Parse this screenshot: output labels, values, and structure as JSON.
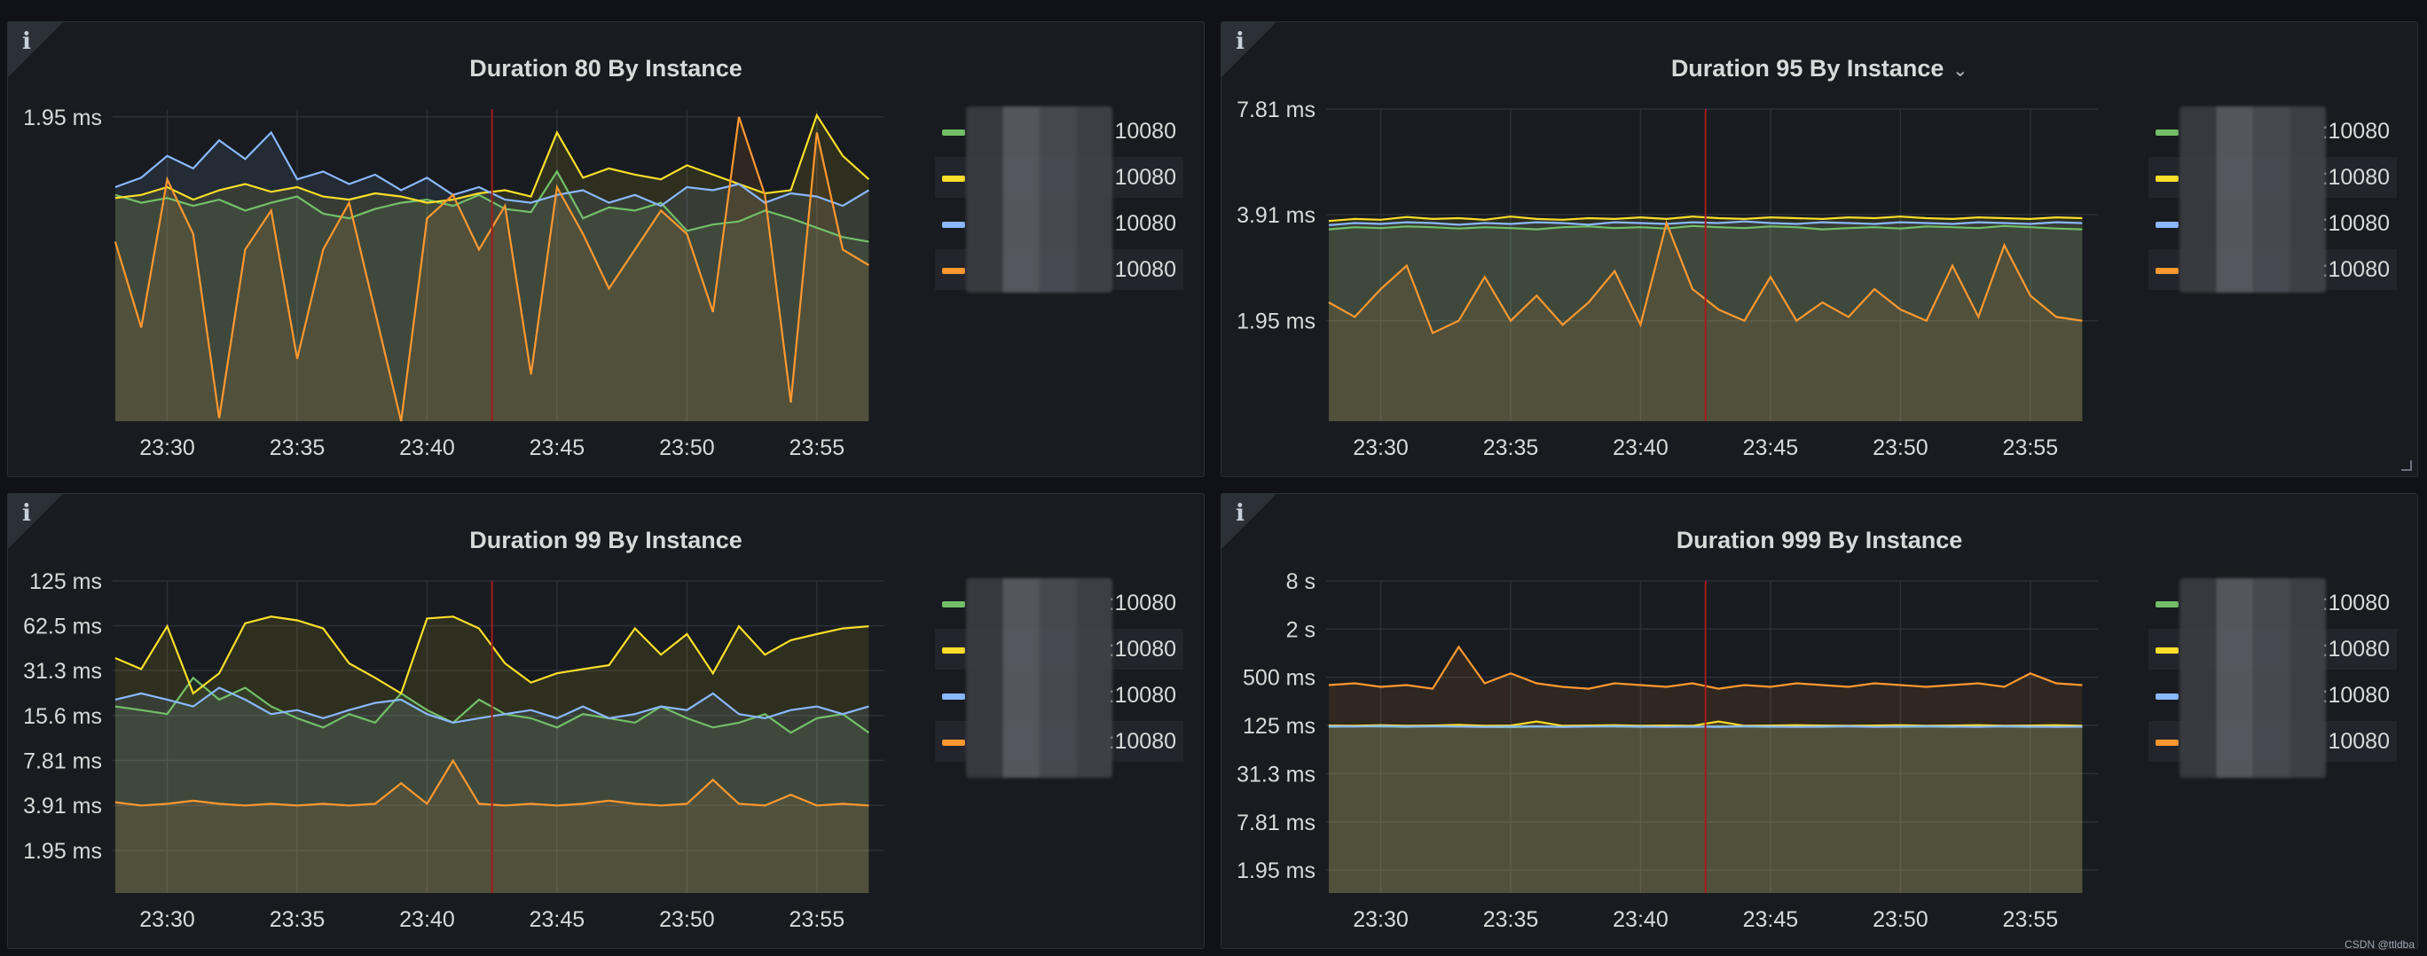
{
  "dashboard": {
    "watermark": "CSDN @ttldba",
    "time_axis": [
      "23:30",
      "23:35",
      "23:40",
      "23:45",
      "23:50",
      "23:55"
    ],
    "series_colors": [
      "#73bf69",
      "#fade2a",
      "#5794f2",
      "#ff9830"
    ],
    "annotation_color": "#a51b1b",
    "legend_suffix": "10080"
  },
  "panels": [
    {
      "title": "Duration 80 By Instance",
      "legend": [
        {
          "label": "10080",
          "color": "#73bf69"
        },
        {
          "label": "10080",
          "color": "#fade2a"
        },
        {
          "label": "10080",
          "color": "#8ab8ff"
        },
        {
          "label": "10080",
          "color": "#ff9830"
        }
      ]
    },
    {
      "title": "Duration 95 By Instance",
      "chevron": "⌄",
      "legend": [
        {
          "label": ":10080",
          "color": "#73bf69"
        },
        {
          "label": ":10080",
          "color": "#fade2a"
        },
        {
          "label": ":10080",
          "color": "#8ab8ff"
        },
        {
          "label": ":10080",
          "color": "#ff9830"
        }
      ]
    },
    {
      "title": "Duration 99 By Instance",
      "legend": [
        {
          "label": ":10080",
          "color": "#73bf69"
        },
        {
          "label": ":10080",
          "color": "#fade2a"
        },
        {
          "label": ":10080",
          "color": "#8ab8ff"
        },
        {
          "label": ":10080",
          "color": "#ff9830"
        }
      ]
    },
    {
      "title": "Duration 999 By Instance",
      "legend": [
        {
          "label": ":10080",
          "color": "#73bf69"
        },
        {
          "label": ":10080",
          "color": "#fade2a"
        },
        {
          "label": ":10080",
          "color": "#8ab8ff"
        },
        {
          "label": "10080",
          "color": "#ff9830"
        }
      ]
    }
  ],
  "chart_data": [
    {
      "type": "area",
      "title": "Duration 80 By Instance",
      "x": [
        "23:28",
        "23:29",
        "23:30",
        "23:31",
        "23:32",
        "23:33",
        "23:34",
        "23:35",
        "23:36",
        "23:37",
        "23:38",
        "23:39",
        "23:40",
        "23:41",
        "23:42",
        "23:43",
        "23:44",
        "23:45",
        "23:46",
        "23:47",
        "23:48",
        "23:49",
        "23:50",
        "23:51",
        "23:52",
        "23:53",
        "23:54",
        "23:55",
        "23:56",
        "23:57"
      ],
      "xticks": [
        "23:30",
        "23:35",
        "23:40",
        "23:45",
        "23:50",
        "23:55"
      ],
      "yticks": [
        "1.95 ms"
      ],
      "ylim": [
        0,
        2.0
      ],
      "annotation_x": "23:42.5",
      "series": [
        {
          "name": "10080",
          "color": "#73bf69",
          "values": [
            1.45,
            1.4,
            1.43,
            1.38,
            1.42,
            1.35,
            1.4,
            1.44,
            1.33,
            1.3,
            1.36,
            1.4,
            1.42,
            1.38,
            1.45,
            1.36,
            1.34,
            1.6,
            1.3,
            1.37,
            1.35,
            1.4,
            1.22,
            1.26,
            1.28,
            1.35,
            1.3,
            1.24,
            1.18,
            1.15
          ]
        },
        {
          "name": "10080",
          "color": "#fade2a",
          "values": [
            1.43,
            1.45,
            1.5,
            1.42,
            1.48,
            1.52,
            1.47,
            1.5,
            1.44,
            1.42,
            1.46,
            1.44,
            1.4,
            1.42,
            1.46,
            1.48,
            1.44,
            1.85,
            1.56,
            1.62,
            1.58,
            1.55,
            1.64,
            1.58,
            1.52,
            1.46,
            1.48,
            1.96,
            1.7,
            1.55
          ]
        },
        {
          "name": "10080",
          "color": "#8ab8ff",
          "values": [
            1.5,
            1.56,
            1.7,
            1.62,
            1.8,
            1.68,
            1.85,
            1.55,
            1.6,
            1.52,
            1.58,
            1.48,
            1.56,
            1.45,
            1.5,
            1.42,
            1.4,
            1.45,
            1.48,
            1.4,
            1.45,
            1.38,
            1.5,
            1.48,
            1.52,
            1.4,
            1.46,
            1.44,
            1.38,
            1.48
          ]
        },
        {
          "name": "10080",
          "color": "#ff9830",
          "values": [
            1.15,
            0.6,
            1.55,
            1.2,
            0.02,
            1.1,
            1.35,
            0.4,
            1.1,
            1.4,
            0.7,
            0.0,
            1.3,
            1.45,
            1.1,
            1.38,
            0.3,
            1.5,
            1.2,
            0.85,
            1.1,
            1.35,
            1.2,
            0.7,
            1.95,
            1.45,
            0.12,
            1.85,
            1.1,
            1.0
          ]
        }
      ]
    },
    {
      "type": "area",
      "title": "Duration 95 By Instance",
      "x": [
        "23:28",
        "23:29",
        "23:30",
        "23:31",
        "23:32",
        "23:33",
        "23:34",
        "23:35",
        "23:36",
        "23:37",
        "23:38",
        "23:39",
        "23:40",
        "23:41",
        "23:42",
        "23:43",
        "23:44",
        "23:45",
        "23:46",
        "23:47",
        "23:48",
        "23:49",
        "23:50",
        "23:51",
        "23:52",
        "23:53",
        "23:54",
        "23:55",
        "23:56",
        "23:57"
      ],
      "xticks": [
        "23:30",
        "23:35",
        "23:40",
        "23:45",
        "23:50",
        "23:55"
      ],
      "yticks": [
        "1.95 ms",
        "3.91 ms",
        "7.81 ms"
      ],
      "yscale": "log2",
      "annotation_x": "23:42.5",
      "series": [
        {
          "name": ":10080",
          "color": "#73bf69",
          "values": [
            3.55,
            3.6,
            3.58,
            3.62,
            3.6,
            3.57,
            3.6,
            3.58,
            3.55,
            3.6,
            3.62,
            3.58,
            3.6,
            3.57,
            3.63,
            3.6,
            3.58,
            3.62,
            3.6,
            3.55,
            3.58,
            3.6,
            3.57,
            3.62,
            3.6,
            3.58,
            3.63,
            3.6,
            3.57,
            3.55
          ]
        },
        {
          "name": ":10080",
          "color": "#fade2a",
          "values": [
            3.75,
            3.8,
            3.78,
            3.85,
            3.8,
            3.82,
            3.78,
            3.86,
            3.8,
            3.78,
            3.82,
            3.8,
            3.84,
            3.8,
            3.86,
            3.82,
            3.8,
            3.84,
            3.82,
            3.8,
            3.84,
            3.82,
            3.86,
            3.82,
            3.8,
            3.84,
            3.82,
            3.8,
            3.84,
            3.82
          ]
        },
        {
          "name": ":10080",
          "color": "#8ab8ff",
          "values": [
            3.65,
            3.7,
            3.68,
            3.72,
            3.7,
            3.66,
            3.7,
            3.68,
            3.72,
            3.7,
            3.66,
            3.72,
            3.7,
            3.68,
            3.72,
            3.7,
            3.74,
            3.7,
            3.68,
            3.72,
            3.7,
            3.68,
            3.72,
            3.7,
            3.68,
            3.72,
            3.7,
            3.68,
            3.72,
            3.7
          ]
        },
        {
          "name": ":10080",
          "color": "#ff9830",
          "values": [
            2.2,
            2.0,
            2.4,
            2.8,
            1.8,
            1.95,
            2.6,
            1.95,
            2.3,
            1.9,
            2.2,
            2.7,
            1.9,
            3.7,
            2.4,
            2.1,
            1.95,
            2.6,
            1.95,
            2.2,
            2.0,
            2.4,
            2.1,
            1.95,
            2.8,
            2.0,
            3.2,
            2.3,
            2.0,
            1.95
          ]
        }
      ]
    },
    {
      "type": "area",
      "title": "Duration 99 By Instance",
      "x": [
        "23:28",
        "23:29",
        "23:30",
        "23:31",
        "23:32",
        "23:33",
        "23:34",
        "23:35",
        "23:36",
        "23:37",
        "23:38",
        "23:39",
        "23:40",
        "23:41",
        "23:42",
        "23:43",
        "23:44",
        "23:45",
        "23:46",
        "23:47",
        "23:48",
        "23:49",
        "23:50",
        "23:51",
        "23:52",
        "23:53",
        "23:54",
        "23:55",
        "23:56",
        "23:57"
      ],
      "xticks": [
        "23:30",
        "23:35",
        "23:40",
        "23:45",
        "23:50",
        "23:55"
      ],
      "yticks": [
        "1.95 ms",
        "3.91 ms",
        "7.81 ms",
        "15.6 ms",
        "31.3 ms",
        "62.5 ms",
        "125 ms"
      ],
      "yscale": "log2",
      "annotation_x": "23:42.5",
      "series": [
        {
          "name": ":10080",
          "color": "#73bf69",
          "values": [
            18,
            17,
            16,
            28,
            20,
            24,
            18,
            15,
            13,
            16,
            14,
            22,
            17,
            14,
            20,
            16,
            15,
            13,
            16,
            15,
            14,
            18,
            15,
            13,
            14,
            16,
            12,
            15,
            16,
            12
          ]
        },
        {
          "name": ":10080",
          "color": "#fade2a",
          "values": [
            38,
            32,
            62,
            22,
            30,
            65,
            72,
            68,
            60,
            35,
            28,
            22,
            70,
            72,
            60,
            35,
            26,
            30,
            32,
            34,
            60,
            40,
            55,
            30,
            62,
            40,
            50,
            55,
            60,
            62
          ]
        },
        {
          "name": ":10080",
          "color": "#8ab8ff",
          "values": [
            20,
            22,
            20,
            18,
            24,
            20,
            16,
            17,
            15,
            17,
            19,
            20,
            16,
            14,
            15,
            16,
            17,
            15,
            18,
            15,
            16,
            18,
            17,
            22,
            16,
            15,
            17,
            18,
            16,
            18
          ]
        },
        {
          "name": ":10080",
          "color": "#ff9830",
          "values": [
            4.1,
            3.9,
            4.0,
            4.2,
            4.0,
            3.9,
            4.0,
            3.9,
            4.0,
            3.9,
            4.0,
            5.5,
            4.0,
            7.8,
            4.0,
            3.9,
            4.0,
            3.9,
            4.0,
            4.2,
            4.0,
            3.9,
            4.0,
            5.8,
            4.0,
            3.9,
            4.6,
            3.9,
            4.0,
            3.9
          ]
        }
      ]
    },
    {
      "type": "area",
      "title": "Duration 999 By Instance",
      "x": [
        "23:28",
        "23:29",
        "23:30",
        "23:31",
        "23:32",
        "23:33",
        "23:34",
        "23:35",
        "23:36",
        "23:37",
        "23:38",
        "23:39",
        "23:40",
        "23:41",
        "23:42",
        "23:43",
        "23:44",
        "23:45",
        "23:46",
        "23:47",
        "23:48",
        "23:49",
        "23:50",
        "23:51",
        "23:52",
        "23:53",
        "23:54",
        "23:55",
        "23:56",
        "23:57"
      ],
      "xticks": [
        "23:30",
        "23:35",
        "23:40",
        "23:45",
        "23:50",
        "23:55"
      ],
      "yticks": [
        "1.95 ms",
        "7.81 ms",
        "31.3 ms",
        "125 ms",
        "500 ms",
        "2 s",
        "8 s"
      ],
      "yscale": "log2",
      "annotation_x": "23:42.5",
      "series": [
        {
          "name": ":10080",
          "color": "#73bf69",
          "values": [
            120,
            122,
            121,
            120,
            122,
            121,
            120,
            119,
            121,
            120,
            122,
            121,
            120,
            121,
            120,
            122,
            121,
            120,
            121,
            120,
            122,
            121,
            120,
            121,
            120,
            122,
            121,
            120,
            121,
            120
          ]
        },
        {
          "name": ":10080",
          "color": "#fade2a",
          "values": [
            125,
            124,
            126,
            124,
            125,
            127,
            124,
            125,
            140,
            124,
            125,
            126,
            124,
            125,
            124,
            140,
            124,
            125,
            126,
            125,
            124,
            125,
            126,
            124,
            125,
            126,
            124,
            125,
            126,
            124
          ]
        },
        {
          "name": ":10080",
          "color": "#8ab8ff",
          "values": [
            122,
            121,
            123,
            121,
            122,
            121,
            120,
            121,
            122,
            120,
            121,
            122,
            121,
            120,
            121,
            120,
            122,
            121,
            120,
            121,
            122,
            120,
            121,
            122,
            121,
            120,
            122,
            121,
            120,
            121
          ]
        },
        {
          "name": ":10080",
          "color": "#ff9830",
          "values": [
            400,
            420,
            380,
            400,
            360,
            1200,
            420,
            560,
            420,
            380,
            360,
            420,
            400,
            380,
            420,
            360,
            400,
            380,
            420,
            400,
            380,
            420,
            400,
            380,
            400,
            420,
            380,
            560,
            420,
            400
          ]
        }
      ]
    }
  ]
}
